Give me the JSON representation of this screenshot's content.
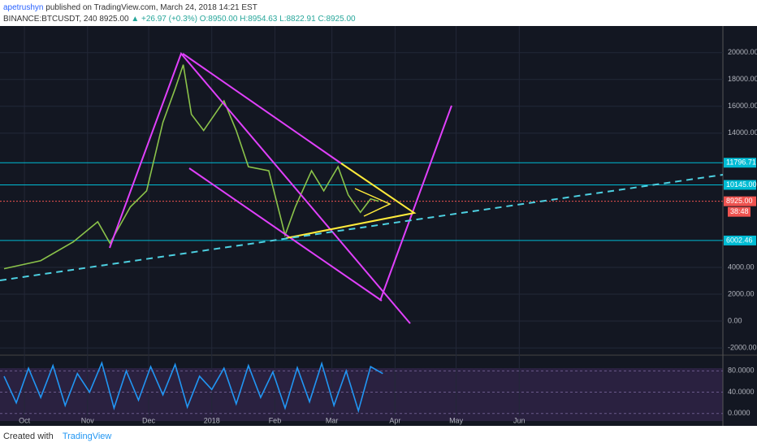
{
  "header": {
    "author": "apetrushyn",
    "published": "published on TradingView.com, March 24, 2018 14:21 EST",
    "symbol": "BINANCE:BTCUSDT, 240",
    "last": "8925.00",
    "change": "▲ +26.97 (+0.3%)",
    "ohlc": [
      "O:8950.00",
      "H:8954.63",
      "L:8822.91",
      "C:8925.00"
    ]
  },
  "footer": {
    "created": "Created with",
    "brand": "TradingView"
  },
  "chart_data": [
    {
      "type": "line",
      "x": [
        -10,
        8,
        24,
        36,
        42,
        52,
        60,
        68,
        74,
        78,
        82,
        88,
        98,
        104,
        110,
        120,
        128,
        133,
        141,
        147,
        154,
        159,
        165,
        170,
        174
      ],
      "series": [
        {
          "color": "#8bc34a",
          "values": [
            3900,
            4500,
            5900,
            7400,
            5800,
            8500,
            9700,
            14800,
            17300,
            19100,
            15400,
            14200,
            16400,
            14200,
            11500,
            11200,
            6400,
            8500,
            11200,
            9700,
            11500,
            9400,
            8100,
            9100,
            8925
          ]
        }
      ],
      "xlim": [
        -12,
        343
      ],
      "ylim": [
        -2600,
        21800
      ],
      "xticks": [
        {
          "value": 0,
          "label": "Oct"
        },
        {
          "value": 31,
          "label": "Nov"
        },
        {
          "value": 61,
          "label": "Dec"
        },
        {
          "value": 92,
          "label": "2018"
        },
        {
          "value": 123,
          "label": "Feb"
        },
        {
          "value": 151,
          "label": "Mar"
        },
        {
          "value": 182,
          "label": "Apr"
        },
        {
          "value": 212,
          "label": "May"
        },
        {
          "value": 243,
          "label": "Jun"
        }
      ],
      "yticks": [
        {
          "value": 20000,
          "label": "20000.00"
        },
        {
          "value": 18000,
          "label": "18000.00"
        },
        {
          "value": 16000,
          "label": "16000.00"
        },
        {
          "value": 14000,
          "label": "14000.00"
        },
        {
          "value": 4000,
          "label": "4000.00"
        },
        {
          "value": 2000,
          "label": "2000.00"
        },
        {
          "value": 0,
          "label": "0.00"
        },
        {
          "value": -2000,
          "label": "-2000.00"
        }
      ],
      "levels": [
        {
          "value": 11796.71,
          "label": "11796.71",
          "color": "#00bcd4"
        },
        {
          "value": 10145,
          "label": "10145.00",
          "color": "#00bcd4"
        },
        {
          "value": 6002.46,
          "label": "6002.46",
          "color": "#00bcd4"
        },
        {
          "value": 8925,
          "label": "8925.00",
          "color": "#ef5350"
        }
      ],
      "countdown": "38:48",
      "grid": true
    },
    {
      "type": "line",
      "x": [
        -10,
        -4,
        2,
        8,
        14,
        20,
        26,
        32,
        38,
        44,
        50,
        56,
        62,
        68,
        74,
        80,
        86,
        92,
        98,
        104,
        110,
        116,
        122,
        128,
        134,
        140,
        146,
        152,
        158,
        164,
        170,
        176
      ],
      "series": [
        {
          "color": "#2196f3",
          "values": [
            70,
            20,
            85,
            30,
            90,
            15,
            75,
            40,
            95,
            10,
            80,
            25,
            88,
            35,
            92,
            12,
            70,
            45,
            85,
            18,
            90,
            30,
            78,
            10,
            86,
            22,
            94,
            15,
            80,
            5,
            88,
            75
          ]
        }
      ],
      "xlim": [
        -12,
        343
      ],
      "ylim": [
        -5,
        105
      ],
      "yticks": [
        {
          "value": 80,
          "label": "80.0000"
        },
        {
          "value": 40,
          "label": "40.0000"
        },
        {
          "value": 0,
          "label": "0.0000"
        }
      ]
    }
  ]
}
